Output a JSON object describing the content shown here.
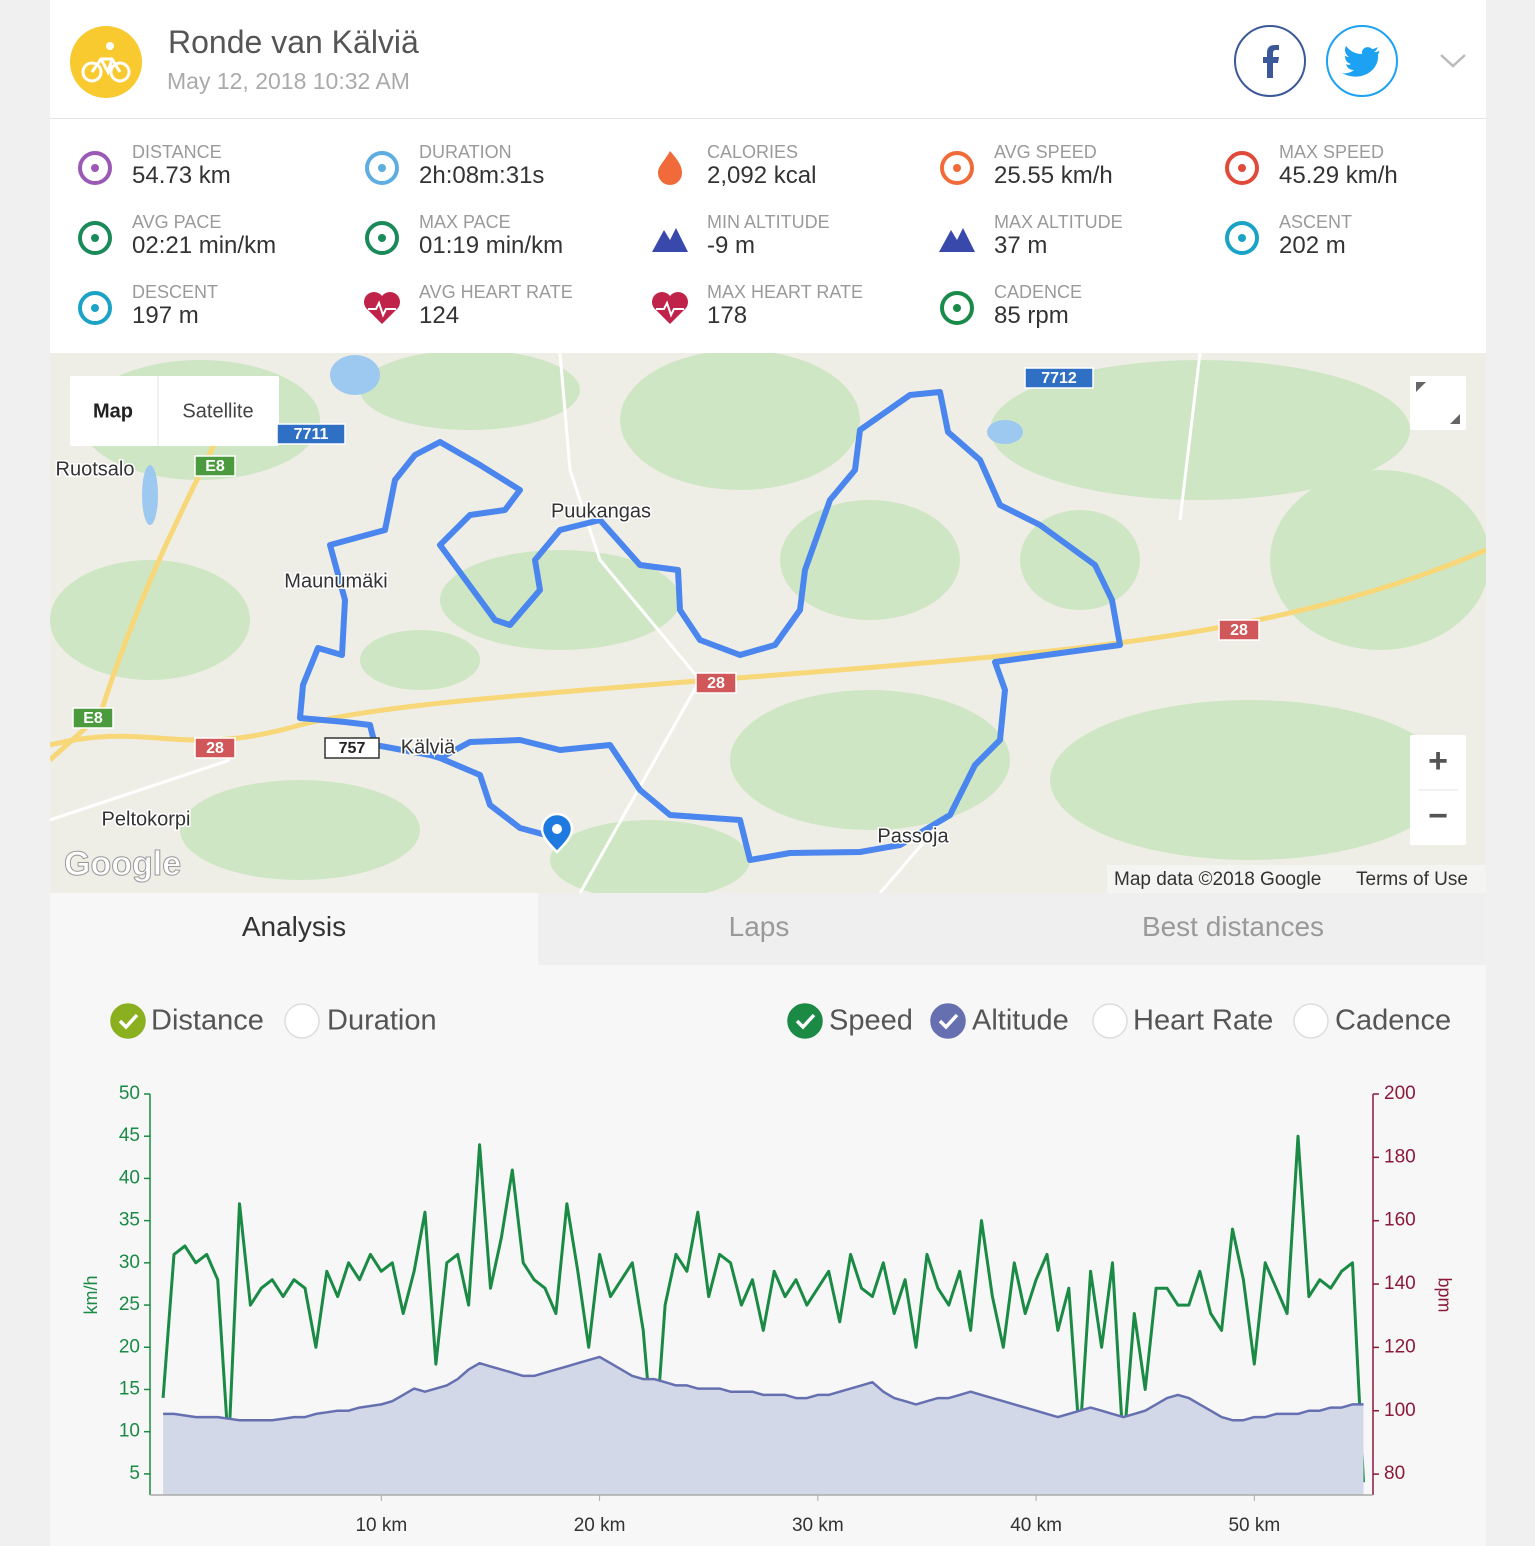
{
  "header": {
    "title": "Ronde van Kälviä",
    "date": "May 12, 2018 10:32 AM"
  },
  "stats": [
    {
      "label": "DISTANCE",
      "value": "54.73 km"
    },
    {
      "label": "DURATION",
      "value": "2h:08m:31s"
    },
    {
      "label": "CALORIES",
      "value": "2,092 kcal"
    },
    {
      "label": "AVG SPEED",
      "value": "25.55 km/h"
    },
    {
      "label": "MAX SPEED",
      "value": "45.29 km/h"
    },
    {
      "label": "AVG PACE",
      "value": "02:21 min/km"
    },
    {
      "label": "MAX PACE",
      "value": "01:19 min/km"
    },
    {
      "label": "MIN ALTITUDE",
      "value": "-9 m"
    },
    {
      "label": "MAX ALTITUDE",
      "value": "37 m"
    },
    {
      "label": "ASCENT",
      "value": "202 m"
    },
    {
      "label": "DESCENT",
      "value": "197 m"
    },
    {
      "label": "AVG HEART RATE",
      "value": "124"
    },
    {
      "label": "MAX HEART RATE",
      "value": "178"
    },
    {
      "label": "CADENCE",
      "value": "85 rpm"
    }
  ],
  "map": {
    "controls": [
      "Map",
      "Satellite"
    ],
    "places": [
      "Ruotsalo",
      "Puukangas",
      "Maunumäki",
      "Kälviä",
      "Peltokorpi",
      "Passoja"
    ],
    "roads": [
      "7711",
      "E8",
      "E8",
      "28",
      "28",
      "28",
      "757",
      "7712"
    ],
    "logo": "Google",
    "attribution": "Map data ©2018 Google",
    "terms": "Terms of Use",
    "zoom_in": "+",
    "zoom_out": "−"
  },
  "tabs": [
    "Analysis",
    "Laps",
    "Best distances"
  ],
  "x_toggles": [
    {
      "label": "Distance",
      "checked": true
    },
    {
      "label": "Duration",
      "checked": false
    }
  ],
  "other_toggles": [
    {
      "label": "Heart Rate",
      "checked": false
    },
    {
      "label": "Cadence",
      "checked": false
    }
  ],
  "chart_data": {
    "type": "line",
    "ylabel": "km/h",
    "y2label": "bpm",
    "xlim": [
      -0.6,
      55.3
    ],
    "xticks": [
      {
        "value": 10,
        "label": "10 km"
      },
      {
        "value": 20,
        "label": "20 km"
      },
      {
        "value": 30,
        "label": "30 km"
      },
      {
        "value": 40,
        "label": "40 km"
      },
      {
        "value": 50,
        "label": "50 km"
      }
    ],
    "ylim": [
      2.5,
      50
    ],
    "yticks": [
      5,
      10,
      15,
      20,
      25,
      30,
      35,
      40,
      45,
      50
    ],
    "y2lim": [
      73.4,
      200
    ],
    "y2ticks": [
      80,
      100,
      120,
      140,
      160,
      180,
      200
    ],
    "x": [
      0,
      0.5,
      1,
      1.5,
      2,
      2.5,
      3,
      3.5,
      4,
      4.5,
      5,
      5.5,
      6,
      6.5,
      7,
      7.5,
      8,
      8.5,
      9,
      9.5,
      10,
      10.5,
      11,
      11.5,
      12,
      12.5,
      13,
      13.5,
      14,
      14.5,
      15,
      15.5,
      16,
      16.5,
      17,
      17.5,
      18,
      18.5,
      19,
      19.5,
      20,
      20.5,
      21,
      21.5,
      22,
      22.5,
      23,
      23.5,
      24,
      24.5,
      25,
      25.5,
      26,
      26.5,
      27,
      27.5,
      28,
      28.5,
      29,
      29.5,
      30,
      30.5,
      31,
      31.5,
      32,
      32.5,
      33,
      33.5,
      34,
      34.5,
      35,
      35.5,
      36,
      36.5,
      37,
      37.5,
      38,
      38.5,
      39,
      39.5,
      40,
      40.5,
      41,
      41.5,
      42,
      42.5,
      43,
      43.5,
      44,
      44.5,
      45,
      45.5,
      46,
      46.5,
      47,
      47.5,
      48,
      48.5,
      49,
      49.5,
      50,
      50.5,
      51,
      51.5,
      52,
      52.5,
      53,
      53.5,
      54,
      54.5,
      55
    ],
    "series": [
      {
        "name": "Speed",
        "color": "#1a8a45",
        "values": [
          14,
          31,
          32,
          30,
          31,
          28,
          8,
          37,
          25,
          27,
          28,
          26,
          28,
          27,
          20,
          29,
          26,
          30,
          28,
          31,
          29,
          30,
          24,
          29,
          36,
          18,
          30,
          31,
          25,
          44,
          27,
          33,
          41,
          30,
          28,
          27,
          24,
          37,
          29,
          20,
          31,
          26,
          28,
          30,
          22,
          7,
          25,
          31,
          29,
          36,
          26,
          31,
          30,
          25,
          28,
          22,
          29,
          26,
          28,
          25,
          27,
          29,
          23,
          31,
          27,
          26,
          30,
          24,
          28,
          20,
          31,
          27,
          25,
          29,
          22,
          35,
          26,
          20,
          30,
          24,
          28,
          31,
          22,
          27,
          9,
          29,
          20,
          30,
          8,
          24,
          15,
          27,
          27,
          25,
          25,
          29,
          24,
          22,
          34,
          28,
          18,
          30,
          27,
          24,
          45,
          26,
          28,
          27,
          29,
          30,
          4
        ]
      },
      {
        "name": "Altitude",
        "color": "#6670b0",
        "axis": "y2",
        "area": true,
        "values": [
          99,
          99,
          98.5,
          98,
          98,
          98,
          97.5,
          97,
          97,
          97,
          97,
          97.5,
          98,
          98,
          99,
          99.5,
          100,
          100,
          101,
          101.5,
          102,
          103,
          105,
          107,
          106,
          107,
          108,
          110,
          113,
          115,
          114,
          113,
          112,
          111,
          111,
          112,
          113,
          114,
          115,
          116,
          117,
          115,
          113,
          111,
          110,
          110,
          109,
          108,
          108,
          107,
          107,
          107,
          106,
          106,
          106,
          105,
          105,
          105,
          104,
          104,
          105,
          105,
          106,
          107,
          108,
          109,
          106,
          104,
          103,
          102,
          103,
          104,
          104,
          105,
          106,
          105,
          104,
          103,
          102,
          101,
          100,
          99,
          98,
          99,
          100,
          101,
          100,
          99,
          98,
          99,
          100,
          102,
          104,
          105,
          104,
          102,
          100,
          98,
          97,
          97,
          98,
          98,
          99,
          99,
          99,
          100,
          100,
          101,
          101,
          102,
          102
        ]
      }
    ]
  }
}
